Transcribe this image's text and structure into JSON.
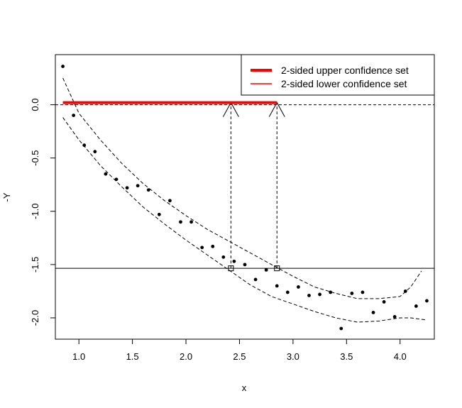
{
  "chart_data": {
    "type": "scatter",
    "xlabel": "x",
    "ylabel": "-Y",
    "xlim": [
      0.78,
      4.32
    ],
    "ylim": [
      -2.2,
      0.47
    ],
    "x_ticks": [
      1.0,
      1.5,
      2.0,
      2.5,
      3.0,
      3.5,
      4.0
    ],
    "x_tick_labels": [
      "1.0",
      "1.5",
      "2.0",
      "2.5",
      "3.0",
      "3.5",
      "4.0"
    ],
    "y_ticks": [
      0.0,
      -0.5,
      -1.0,
      -1.5,
      -2.0
    ],
    "y_tick_labels": [
      "0.0",
      "-0.5",
      "-1.0",
      "-1.5",
      "-2.0"
    ],
    "grid": false,
    "legend_position": "top-right",
    "legend": [
      {
        "label": "2-sided upper confidence set",
        "color": "#ff0000",
        "weight": "thick"
      },
      {
        "label": "2-sided lower confidence set",
        "color": "#ff0000",
        "weight": "thin"
      }
    ],
    "points": {
      "x": [
        0.85,
        0.95,
        1.05,
        1.15,
        1.25,
        1.35,
        1.45,
        1.55,
        1.65,
        1.75,
        1.85,
        1.95,
        2.05,
        2.15,
        2.25,
        2.35,
        2.45,
        2.55,
        2.65,
        2.75,
        2.85,
        2.95,
        3.05,
        3.15,
        3.25,
        3.35,
        3.45,
        3.55,
        3.65,
        3.75,
        3.85,
        3.95,
        4.05,
        4.15,
        4.25
      ],
      "y": [
        0.36,
        -0.1,
        -0.38,
        -0.44,
        -0.65,
        -0.7,
        -0.78,
        -0.76,
        -0.8,
        -1.03,
        -0.9,
        -1.1,
        -1.1,
        -1.34,
        -1.33,
        -1.43,
        -1.47,
        -1.5,
        -1.64,
        -1.55,
        -1.7,
        -1.76,
        -1.71,
        -1.79,
        -1.78,
        -1.76,
        -2.1,
        -1.77,
        -1.76,
        -1.95,
        -1.85,
        -1.99,
        -1.75,
        -1.89,
        -1.84
      ]
    },
    "upper_band": {
      "x": [
        0.85,
        1.0,
        1.2,
        1.4,
        1.6,
        1.8,
        2.0,
        2.2,
        2.4,
        2.6,
        2.8,
        3.0,
        3.2,
        3.4,
        3.6,
        3.8,
        4.0,
        4.1,
        4.2
      ],
      "y": [
        0.25,
        -0.08,
        -0.33,
        -0.55,
        -0.74,
        -0.9,
        -1.04,
        -1.17,
        -1.28,
        -1.39,
        -1.5,
        -1.61,
        -1.71,
        -1.77,
        -1.82,
        -1.82,
        -1.8,
        -1.71,
        -1.56
      ]
    },
    "lower_band": {
      "x": [
        0.85,
        1.0,
        1.2,
        1.4,
        1.6,
        1.8,
        2.0,
        2.2,
        2.4,
        2.6,
        2.8,
        3.0,
        3.2,
        3.4,
        3.6,
        3.8,
        4.0,
        4.1,
        4.25
      ],
      "y": [
        -0.12,
        -0.33,
        -0.57,
        -0.77,
        -0.96,
        -1.12,
        -1.27,
        -1.41,
        -1.55,
        -1.69,
        -1.8,
        -1.87,
        -1.94,
        -2.0,
        -2.04,
        -2.03,
        -2.0,
        -2.0,
        -2.02
      ]
    },
    "horizontal_lines": [
      {
        "y": 0.0,
        "style": "dashed"
      },
      {
        "y": -1.535,
        "style": "solid"
      }
    ],
    "confidence_set": {
      "x_start": 0.85,
      "x_end": 2.85,
      "y": 0.02,
      "color": "#ff0000"
    },
    "intersections": [
      {
        "x": 2.42,
        "y": -1.535
      },
      {
        "x": 2.85,
        "y": -1.535
      }
    ]
  }
}
